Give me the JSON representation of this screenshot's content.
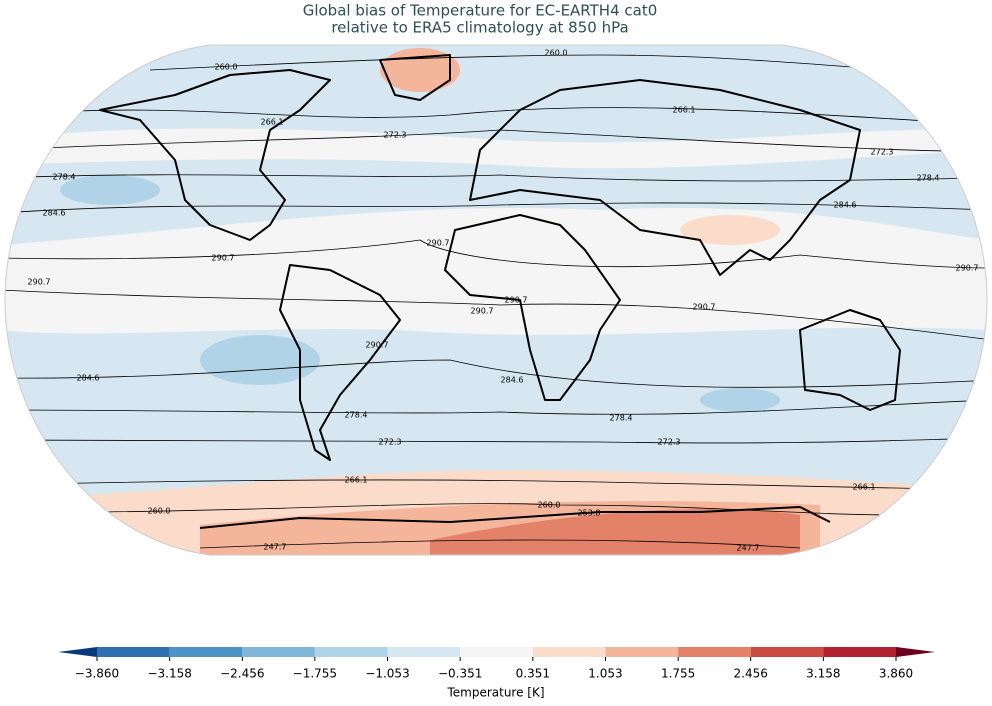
{
  "title": [
    "Global bias of Temperature for EC-EARTH4 cat0",
    "relative to ERA5 climatology at 850 hPa"
  ],
  "contour_labels": [
    "260.0",
    "260.0",
    "266.1",
    "266.1",
    "272.3",
    "272.3",
    "278.4",
    "278.4",
    "284.6",
    "284.6",
    "290.7",
    "290.7",
    "290.7",
    "290.7",
    "290.7",
    "290.7",
    "290.7",
    "290.7",
    "284.6",
    "284.6",
    "278.4",
    "278.4",
    "272.3",
    "272.3",
    "266.1",
    "266.1",
    "260.0",
    "260.0",
    "253.8",
    "247.7",
    "247.7"
  ],
  "colorbar": {
    "label": "Temperature [K]",
    "ticks": [
      {
        "value": -3.86,
        "label": "−3.860"
      },
      {
        "value": -3.158,
        "label": "−3.158"
      },
      {
        "value": -2.456,
        "label": "−2.456"
      },
      {
        "value": -1.755,
        "label": "−1.755"
      },
      {
        "value": -1.053,
        "label": "−1.053"
      },
      {
        "value": -0.351,
        "label": "−0.351"
      },
      {
        "value": 0.351,
        "label": "0.351"
      },
      {
        "value": 1.053,
        "label": "1.053"
      },
      {
        "value": 1.755,
        "label": "1.755"
      },
      {
        "value": 2.456,
        "label": "2.456"
      },
      {
        "value": 3.158,
        "label": "3.158"
      },
      {
        "value": 3.86,
        "label": "3.860"
      }
    ],
    "colors": [
      "#2e6fb1",
      "#4d94c6",
      "#80b7d8",
      "#b1d3e7",
      "#d6e7f1",
      "#f5f5f5",
      "#fbdccb",
      "#f4b59b",
      "#e48269",
      "#cb4b43",
      "#b0202f"
    ],
    "extend_colors": [
      "#073a7a",
      "#6a0020"
    ]
  }
}
